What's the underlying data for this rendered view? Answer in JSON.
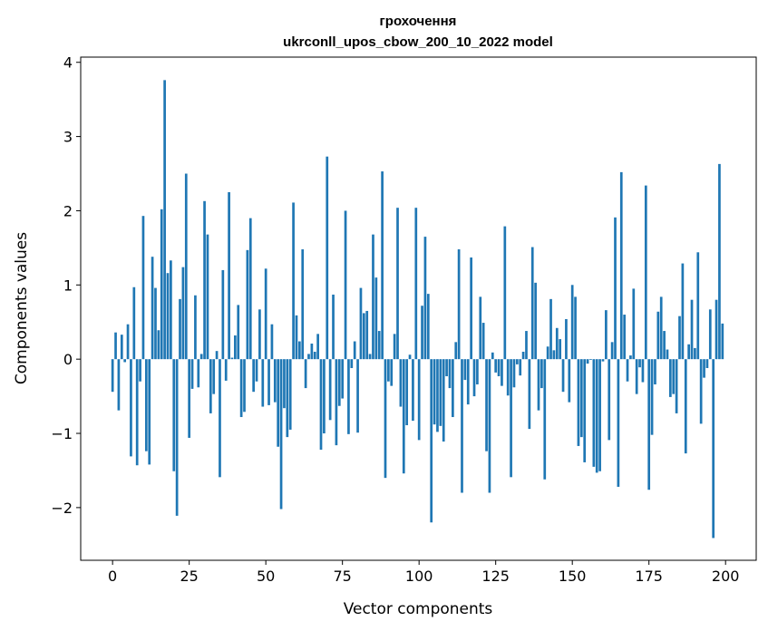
{
  "chart_data": {
    "type": "bar",
    "title": [
      "грохочення",
      "ukrconll_upos_cbow_200_10_2022 model"
    ],
    "xlabel": "Vector components",
    "ylabel": "Components values",
    "xlim": [
      -10.4,
      210.0
    ],
    "ylim": [
      -2.71,
      4.07
    ],
    "xticks": [
      0,
      25,
      50,
      75,
      100,
      125,
      150,
      175,
      200
    ],
    "yticks": [
      -2,
      -1,
      0,
      1,
      2,
      3,
      4
    ],
    "xtick_labels": [
      "0",
      "25",
      "50",
      "75",
      "100",
      "125",
      "150",
      "175",
      "200"
    ],
    "ytick_labels": [
      "−2",
      "−1",
      "0",
      "1",
      "2",
      "3",
      "4"
    ],
    "color": "#1f77b4",
    "grid": false,
    "values": [
      -0.44,
      0.36,
      -0.69,
      0.33,
      -0.04,
      0.47,
      -1.31,
      0.97,
      -1.43,
      -0.3,
      1.93,
      -1.24,
      -1.42,
      1.38,
      0.96,
      0.39,
      2.02,
      3.76,
      1.16,
      1.33,
      -1.51,
      -2.11,
      0.81,
      1.24,
      2.5,
      -1.06,
      -0.4,
      0.86,
      -0.38,
      0.07,
      2.13,
      1.68,
      -0.73,
      -0.47,
      0.11,
      -1.59,
      1.2,
      -0.29,
      2.25,
      0.02,
      0.32,
      0.73,
      -0.78,
      -0.71,
      1.47,
      1.9,
      -0.44,
      -0.3,
      0.67,
      -0.64,
      1.22,
      -0.62,
      0.47,
      -0.58,
      -1.18,
      -2.02,
      -0.66,
      -1.05,
      -0.95,
      2.11,
      0.59,
      0.24,
      1.48,
      -0.39,
      0.07,
      0.21,
      0.1,
      0.34,
      -1.22,
      -1.0,
      2.73,
      -0.82,
      0.87,
      -1.16,
      -0.63,
      -0.53,
      2.0,
      -1.01,
      -0.12,
      0.24,
      -0.99,
      0.96,
      0.62,
      0.65,
      0.07,
      1.68,
      1.1,
      0.38,
      2.53,
      -1.6,
      -0.3,
      -0.36,
      0.34,
      2.04,
      -0.64,
      -1.54,
      -0.89,
      0.06,
      -0.83,
      2.04,
      -1.09,
      0.72,
      1.65,
      0.88,
      -2.2,
      -0.88,
      -0.98,
      -0.9,
      -1.11,
      -0.23,
      -0.39,
      -0.78,
      0.23,
      1.48,
      -1.8,
      -0.28,
      -0.61,
      1.37,
      -0.5,
      -0.34,
      0.84,
      0.49,
      -1.24,
      -1.8,
      0.09,
      -0.18,
      -0.23,
      -0.36,
      1.79,
      -0.49,
      -1.59,
      -0.38,
      -0.07,
      -0.22,
      0.1,
      0.38,
      -0.94,
      1.51,
      1.03,
      -0.69,
      -0.39,
      -1.62,
      0.17,
      0.81,
      0.12,
      0.42,
      0.27,
      -0.44,
      0.54,
      -0.58,
      1.0,
      0.84,
      -1.17,
      -1.05,
      -1.39,
      -0.06,
      -0.01,
      -1.45,
      -1.53,
      -1.51,
      -0.03,
      0.66,
      -1.09,
      0.23,
      1.91,
      -1.72,
      2.52,
      0.6,
      -0.3,
      0.05,
      0.95,
      -0.47,
      -0.11,
      -0.31,
      2.34,
      -1.76,
      -1.02,
      -0.34,
      0.64,
      0.84,
      0.38,
      0.13,
      -0.51,
      -0.47,
      -0.73,
      0.58,
      1.29,
      -1.27,
      0.2,
      0.8,
      0.15,
      1.44,
      -0.87,
      -0.25,
      -0.12,
      0.67,
      -2.41,
      0.8,
      2.63,
      0.48
    ]
  }
}
